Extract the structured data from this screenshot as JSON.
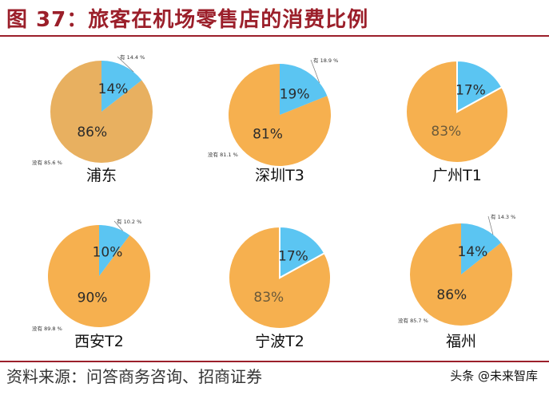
{
  "title": "图 37：旅客在机场零售店的消费比例",
  "source": "资料来源：问答商务咨询、招商证券",
  "watermark": "头条 @未来智库",
  "colors": {
    "yes_slice": "#5bc5f2",
    "no_slice": "#f6b04f",
    "no_slice_muted": "#e8b060",
    "title": "#9b1f2a",
    "pct_text": "#2b2b2b"
  },
  "chart_data": [
    {
      "type": "pie",
      "title": "浦东",
      "slices": [
        {
          "label": "有",
          "value": 14.4,
          "pct_label": "14%",
          "callout": "有 14.4 %"
        },
        {
          "label": "没有",
          "value": 85.6,
          "pct_label": "86%",
          "callout": "没有 85.6 %"
        }
      ]
    },
    {
      "type": "pie",
      "title": "深圳T3",
      "slices": [
        {
          "label": "有",
          "value": 18.9,
          "pct_label": "19%",
          "callout": "有 18.9 %"
        },
        {
          "label": "没有",
          "value": 81.1,
          "pct_label": "81%",
          "callout": "没有 81.1 %"
        }
      ]
    },
    {
      "type": "pie",
      "title": "广州T1",
      "slices": [
        {
          "label": "有",
          "value": 17,
          "pct_label": "17%",
          "callout": ""
        },
        {
          "label": "没有",
          "value": 83,
          "pct_label": "83%",
          "callout": ""
        }
      ]
    },
    {
      "type": "pie",
      "title": "西安T2",
      "slices": [
        {
          "label": "有",
          "value": 10.2,
          "pct_label": "10%",
          "callout": "有 10.2 %"
        },
        {
          "label": "没有",
          "value": 89.8,
          "pct_label": "90%",
          "callout": "没有 89.8 %"
        }
      ]
    },
    {
      "type": "pie",
      "title": "宁波T2",
      "slices": [
        {
          "label": "有",
          "value": 17,
          "pct_label": "17%",
          "callout": ""
        },
        {
          "label": "没有",
          "value": 83,
          "pct_label": "83%",
          "callout": ""
        }
      ]
    },
    {
      "type": "pie",
      "title": "福州",
      "slices": [
        {
          "label": "有",
          "value": 14.3,
          "pct_label": "14%",
          "callout": "有 14.3 %"
        },
        {
          "label": "没有",
          "value": 85.7,
          "pct_label": "86%",
          "callout": "没有 85.7 %"
        }
      ]
    }
  ]
}
